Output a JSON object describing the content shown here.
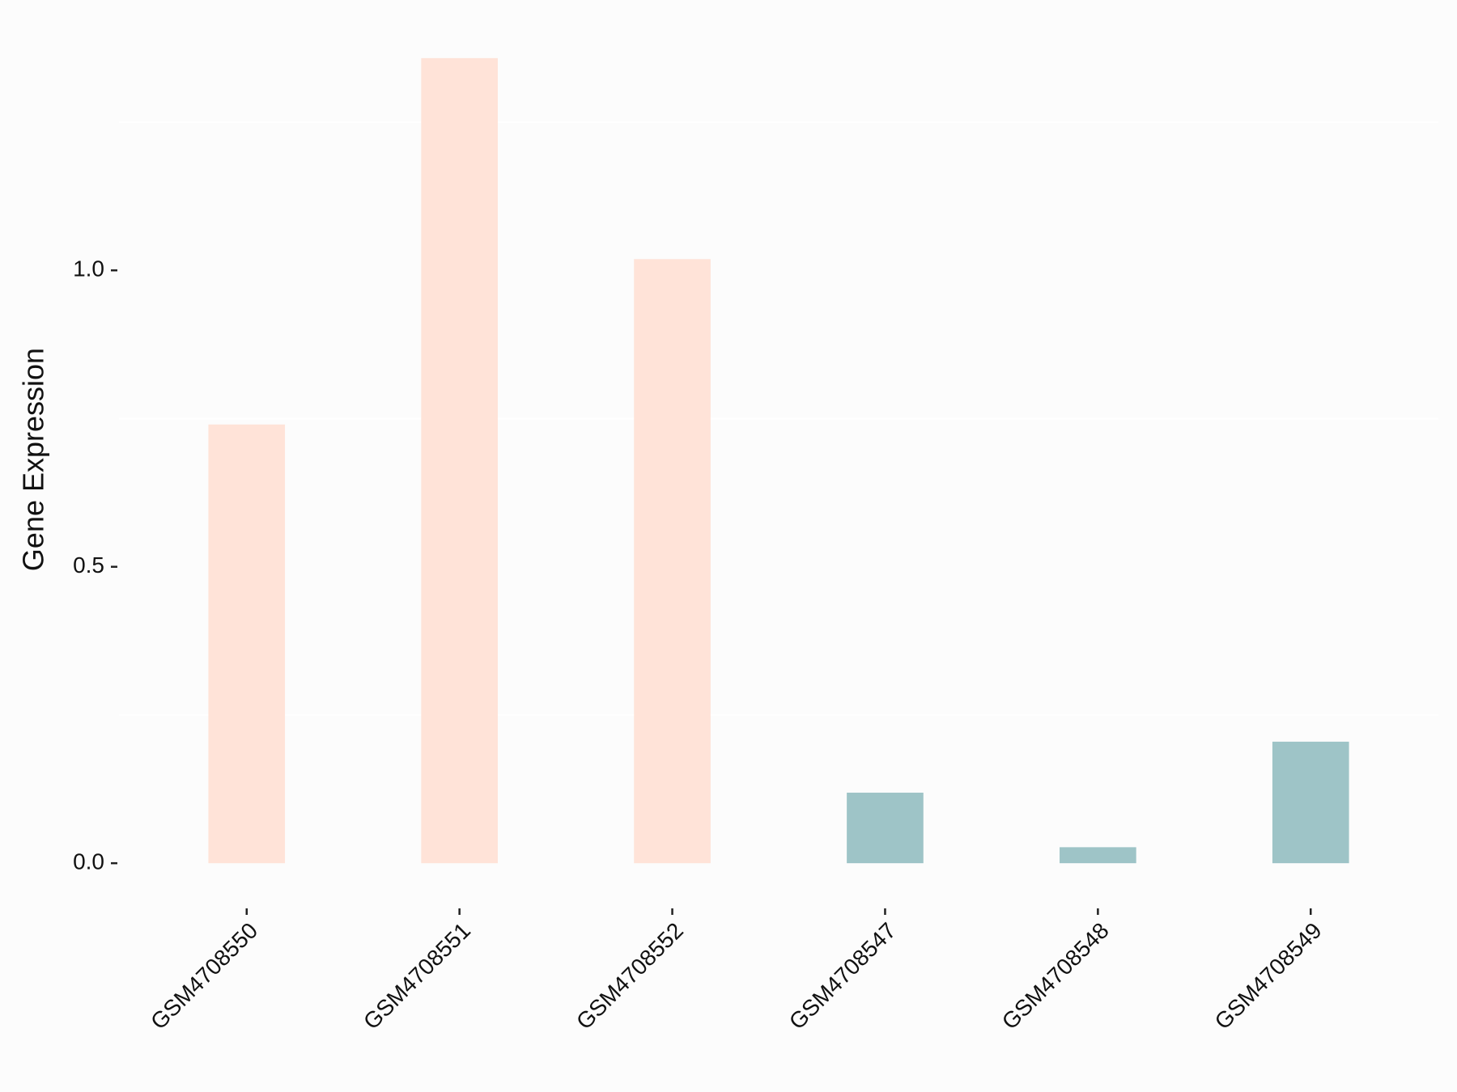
{
  "chart_data": {
    "type": "bar",
    "y_label": "Gene Expression",
    "categories": [
      "GSM4708550",
      "GSM4708551",
      "GSM4708552",
      "GSM4708547",
      "GSM4708548",
      "GSM4708549"
    ],
    "values": [
      0.74,
      1.358,
      1.019,
      0.119,
      0.027,
      0.205
    ],
    "colors": [
      "#FFE3D8",
      "#FFE3D8",
      "#FFE3D8",
      "#9EC4C7",
      "#9EC4C7",
      "#9EC4C7"
    ],
    "ylim": [
      -0.068,
      1.426
    ],
    "yticks": [
      {
        "value": 0,
        "label": "0.0"
      },
      {
        "value": 0.5,
        "label": "0.5"
      },
      {
        "value": 1,
        "label": "1.0"
      }
    ],
    "minor_yticks": [
      0.25,
      0.75,
      1.25
    ],
    "grid": true
  }
}
